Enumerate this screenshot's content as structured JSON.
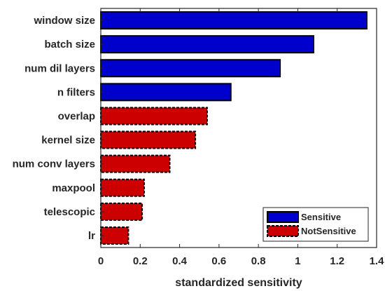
{
  "chart_data": {
    "type": "bar",
    "orientation": "horizontal",
    "xlabel": "standardized sensitivity",
    "ylabel": "",
    "xlim": [
      0,
      1.4
    ],
    "xticks": [
      "0",
      "0.2",
      "0.4",
      "0.6",
      "0.8",
      "1",
      "1.2",
      "1.4"
    ],
    "categories": [
      "window size",
      "batch size",
      "num dil layers",
      "n filters",
      "overlap",
      "kernel size",
      "num conv layers",
      "maxpool",
      "telescopic",
      "lr"
    ],
    "values": [
      1.35,
      1.08,
      0.91,
      0.66,
      0.54,
      0.48,
      0.35,
      0.22,
      0.21,
      0.14
    ],
    "groups": [
      "Sensitive",
      "Sensitive",
      "Sensitive",
      "Sensitive",
      "NotSensitive",
      "NotSensitive",
      "NotSensitive",
      "NotSensitive",
      "NotSensitive",
      "NotSensitive"
    ],
    "legend": {
      "placement": "bottom-right",
      "entries": [
        {
          "label": "Sensitive",
          "color": "#0000cc",
          "border": "solid"
        },
        {
          "label": "NotSensitive",
          "color": "#cc0000",
          "border": "dashed"
        }
      ]
    },
    "grid": false
  }
}
